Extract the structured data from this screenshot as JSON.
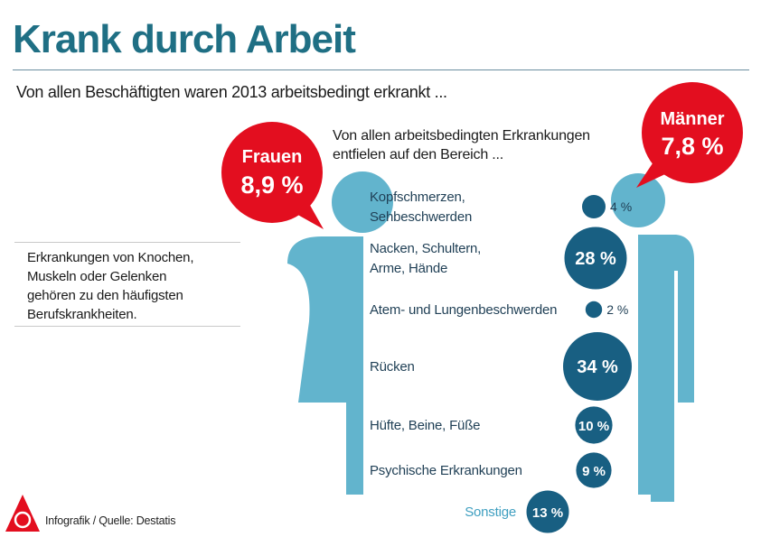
{
  "title": "Krank durch Arbeit",
  "subtitle": "Von allen Beschäftigten waren 2013 arbeitsbedingt erkrankt ...",
  "section_heading": [
    "Von allen arbeitsbedingten Erkrankungen",
    "entfielen auf den Bereich ..."
  ],
  "note": [
    "Erkrankungen von Knochen,",
    "Muskeln oder Gelenken",
    "gehören zu den häufigsten",
    "Berufskrankheiten."
  ],
  "source": "Infografik / Quelle: Destatis",
  "colors": {
    "title": "#1f6f84",
    "figure": "#62b4cd",
    "circle": "#185f82",
    "bubble": "#e30e1f"
  },
  "chart_data": {
    "type": "bubble",
    "title": "Krank durch Arbeit",
    "gender": [
      {
        "name": "Frauen",
        "label": "8,9 %",
        "value": 8.9
      },
      {
        "name": "Männer",
        "label": "7,8 %",
        "value": 7.8
      }
    ],
    "categories": [
      {
        "name": [
          "Kopfschmerzen,",
          "Sehbeschwerden"
        ],
        "value": 4,
        "label": "4 %"
      },
      {
        "name": [
          "Nacken, Schultern,",
          "Arme, Hände"
        ],
        "value": 28,
        "label": "28 %"
      },
      {
        "name": [
          "Atem- und Lungenbeschwerden"
        ],
        "value": 2,
        "label": "2 %"
      },
      {
        "name": [
          "Rücken"
        ],
        "value": 34,
        "label": "34 %"
      },
      {
        "name": [
          "Hüfte, Beine, Füße"
        ],
        "value": 10,
        "label": "10 %"
      },
      {
        "name": [
          "Psychische Erkrankungen"
        ],
        "value": 9,
        "label": "9 %"
      },
      {
        "name": [
          "Sonstige"
        ],
        "value": 13,
        "label": "13 %"
      }
    ]
  }
}
